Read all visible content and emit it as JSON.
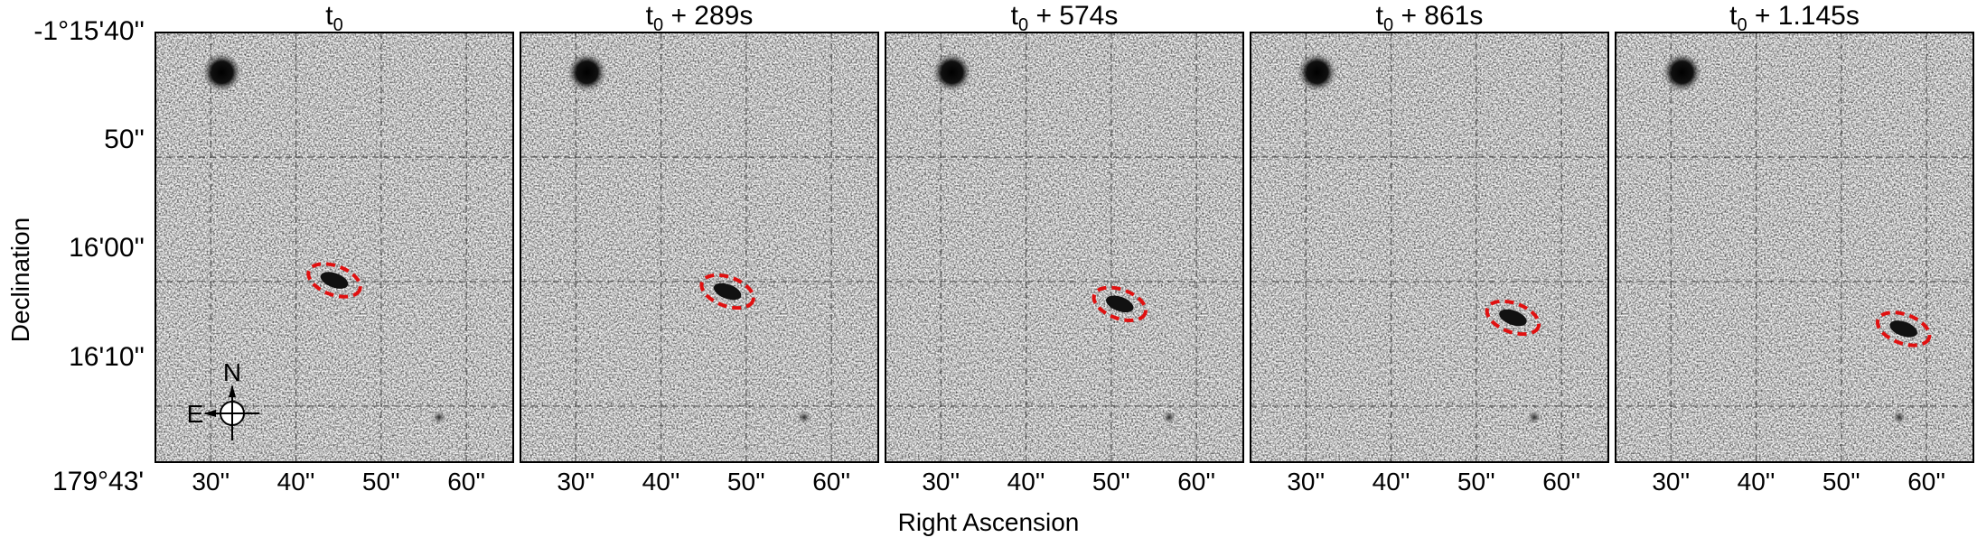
{
  "figure": {
    "y_axis_title": "Declination",
    "x_axis_title": "Right Ascension",
    "y_ticks": [
      "-1°15'40''",
      "50''",
      "16'00''",
      "16'10''"
    ],
    "x_origin_label": "179°43'",
    "x_ticks": [
      "30''",
      "40''",
      "50''",
      "60''"
    ],
    "panels": [
      {
        "title_main": "t",
        "title_sub": "0",
        "title_suffix": "",
        "target_ra_arcsec": 44.5,
        "target_dec_arcsec": 59.9
      },
      {
        "title_main": "t",
        "title_sub": "0",
        "title_suffix": " + 289s",
        "target_ra_arcsec": 47.8,
        "target_dec_arcsec": 60.8
      },
      {
        "title_main": "t",
        "title_sub": "0",
        "title_suffix": " + 574s",
        "target_ra_arcsec": 51.0,
        "target_dec_arcsec": 61.8
      },
      {
        "title_main": "t",
        "title_sub": "0",
        "title_suffix": " + 861s",
        "target_ra_arcsec": 54.3,
        "target_dec_arcsec": 62.9
      },
      {
        "title_main": "t",
        "title_sub": "0",
        "title_suffix": " + 1.145s",
        "target_ra_arcsec": 57.3,
        "target_dec_arcsec": 63.8
      }
    ],
    "compass": {
      "north": "N",
      "east": "E"
    },
    "colors": {
      "target_ellipse": "#e01010",
      "background": "#f4f4f4",
      "star": "#111111"
    }
  }
}
